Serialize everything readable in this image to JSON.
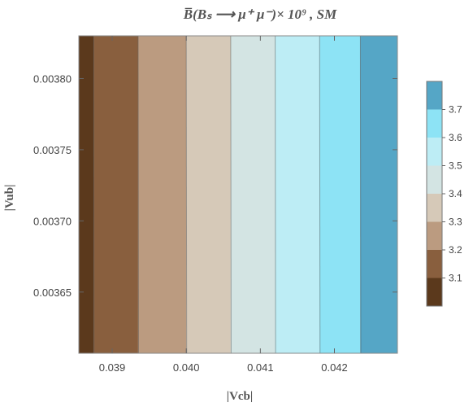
{
  "chart_data": {
    "type": "heatmap",
    "title": "B̅(Bₛ ⟶ μ⁺ μ⁻)× 10⁹ , SM",
    "xlabel": "|Vcb|",
    "ylabel": "|Vub|",
    "xlim": [
      0.03855,
      0.04285
    ],
    "ylim": [
      0.003607,
      0.00383
    ],
    "x_ticks": [
      {
        "value": 0.039,
        "label": "0.039"
      },
      {
        "value": 0.04,
        "label": "0.040"
      },
      {
        "value": 0.041,
        "label": "0.041"
      },
      {
        "value": 0.042,
        "label": "0.042"
      }
    ],
    "y_ticks": [
      {
        "value": 0.00365,
        "label": "0.00365"
      },
      {
        "value": 0.0037,
        "label": "0.00370"
      },
      {
        "value": 0.00375,
        "label": "0.00375"
      },
      {
        "value": 0.0038,
        "label": "0.00380"
      }
    ],
    "contour_bands": [
      {
        "x_from": 0.03855,
        "x_to": 0.03875,
        "z_from": 3.0,
        "z_to": 3.1,
        "color": "#5b391c"
      },
      {
        "x_from": 0.03875,
        "x_to": 0.03935,
        "z_from": 3.1,
        "z_to": 3.2,
        "color": "#895f3e"
      },
      {
        "x_from": 0.03935,
        "x_to": 0.04,
        "z_from": 3.2,
        "z_to": 3.3,
        "color": "#bb9b80"
      },
      {
        "x_from": 0.04,
        "x_to": 0.0406,
        "z_from": 3.3,
        "z_to": 3.4,
        "color": "#d6c9b8"
      },
      {
        "x_from": 0.0406,
        "x_to": 0.0412,
        "z_from": 3.4,
        "z_to": 3.5,
        "color": "#d3e4e3"
      },
      {
        "x_from": 0.0412,
        "x_to": 0.0418,
        "z_from": 3.5,
        "z_to": 3.6,
        "color": "#bdedf5"
      },
      {
        "x_from": 0.0418,
        "x_to": 0.04235,
        "z_from": 3.6,
        "z_to": 3.7,
        "color": "#8de3f5"
      },
      {
        "x_from": 0.04235,
        "x_to": 0.04285,
        "z_from": 3.7,
        "z_to": 3.8,
        "color": "#55a6c6"
      }
    ],
    "colorbar": {
      "range": [
        3.0,
        3.8
      ],
      "tick_labels": [
        "3.1",
        "3.2",
        "3.3",
        "3.4",
        "3.5",
        "3.6",
        "3.7"
      ],
      "colors": [
        "#5b391c",
        "#895f3e",
        "#bb9b80",
        "#d6c9b8",
        "#d3e4e3",
        "#bdedf5",
        "#8de3f5",
        "#55a6c6"
      ]
    }
  }
}
